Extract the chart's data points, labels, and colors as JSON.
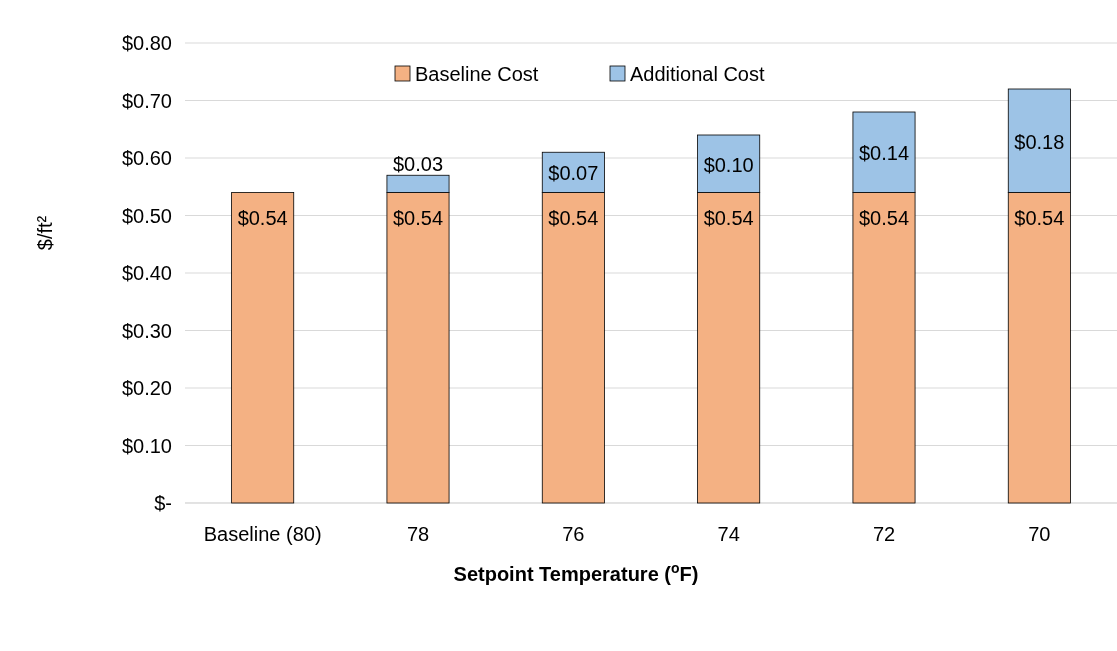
{
  "chart_data": {
    "type": "bar",
    "stacked": true,
    "xlabel": "Setpoint Temperature ($^{o}$F)",
    "ylabel": "$/ft²",
    "categories": [
      "Baseline (80)",
      "78",
      "76",
      "74",
      "72",
      "70"
    ],
    "series": [
      {
        "name": "Baseline Cost",
        "color": "#f4b183",
        "values": [
          0.54,
          0.54,
          0.54,
          0.54,
          0.54,
          0.54
        ],
        "value_labels": [
          "$0.54",
          "$0.54",
          "$0.54",
          "$0.54",
          "$0.54",
          "$0.54"
        ]
      },
      {
        "name": "Additional Cost",
        "color": "#9dc3e6",
        "values": [
          null,
          0.03,
          0.07,
          0.1,
          0.14,
          0.18
        ],
        "value_labels": [
          null,
          "$0.03",
          "$0.07",
          "$0.10",
          "$0.14",
          "$0.18"
        ]
      }
    ],
    "ylim": [
      0,
      0.8
    ],
    "yticks": [
      {
        "value": 0,
        "label": "$-"
      },
      {
        "value": 0.1,
        "label": "$0.10"
      },
      {
        "value": 0.2,
        "label": "$0.20"
      },
      {
        "value": 0.3,
        "label": "$0.30"
      },
      {
        "value": 0.4,
        "label": "$0.40"
      },
      {
        "value": 0.5,
        "label": "$0.50"
      },
      {
        "value": 0.6,
        "label": "$0.60"
      },
      {
        "value": 0.7,
        "label": "$0.70"
      },
      {
        "value": 0.8,
        "label": "$0.80"
      }
    ],
    "grid": "y",
    "legend": "top"
  }
}
